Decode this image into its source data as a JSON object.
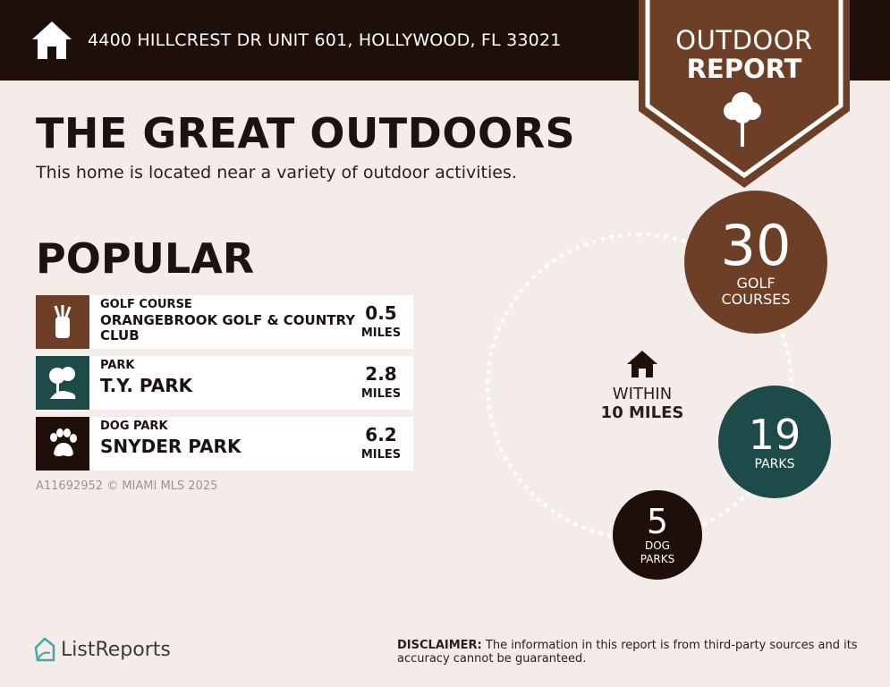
{
  "header": {
    "address": "4400 HILLCREST DR UNIT 601, HOLLYWOOD, FL 33021",
    "icon": "home-icon"
  },
  "badge": {
    "line1": "OUTDOOR",
    "line2": "REPORT",
    "icon": "tree-icon",
    "color": "#6e3f27"
  },
  "title": "THE GREAT OUTDOORS",
  "subtitle": "This home is located near a variety of outdoor activities.",
  "popular": {
    "heading": "POPULAR",
    "items": [
      {
        "category": "GOLF COURSE",
        "name": "ORANGEBROOK GOLF & COUNTRY CLUB",
        "distance": "0.5",
        "unit": "MILES",
        "icon": "golf-bag-icon",
        "color": "#6e3f27"
      },
      {
        "category": "PARK",
        "name": "T.Y. PARK",
        "distance": "2.8",
        "unit": "MILES",
        "icon": "park-trees-icon",
        "color": "#1d4b4a"
      },
      {
        "category": "DOG PARK",
        "name": "SNYDER PARK",
        "distance": "6.2",
        "unit": "MILES",
        "icon": "paw-icon",
        "color": "#1e0f0b"
      }
    ]
  },
  "watermark": "A11692952 © MIAMI MLS 2025",
  "summary": {
    "within_line1": "WITHIN",
    "within_line2": "10 MILES",
    "golf": {
      "count": "30",
      "label1": "GOLF",
      "label2": "COURSES"
    },
    "parks": {
      "count": "19",
      "label1": "PARKS"
    },
    "dog_parks": {
      "count": "5",
      "label1": "DOG",
      "label2": "PARKS"
    }
  },
  "footer": {
    "logo": "ListReports",
    "disclaimer_label": "DISCLAIMER:",
    "disclaimer_text": " The information in this report is from third-party sources and its accuracy cannot be guaranteed."
  }
}
